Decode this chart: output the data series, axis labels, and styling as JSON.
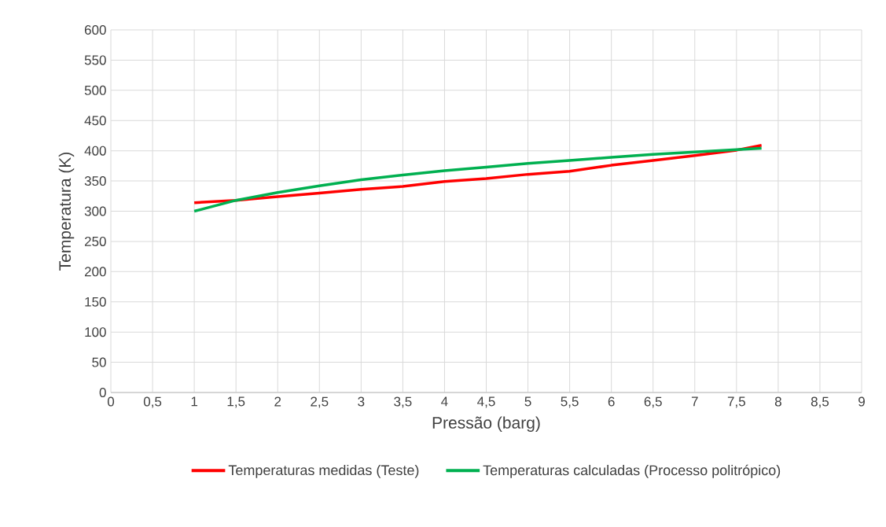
{
  "chart_data": {
    "type": "line",
    "xlabel": "Pressão (barg)",
    "ylabel": "Temperatura (K)",
    "xlim": [
      0,
      9
    ],
    "xticks": [
      0,
      {
        "value": 0.5,
        "label": "0,5"
      },
      1,
      {
        "value": 1.5,
        "label": "1,5"
      },
      2,
      {
        "value": 2.5,
        "label": "2,5"
      },
      3,
      {
        "value": 3.5,
        "label": "3,5"
      },
      4,
      {
        "value": 4.5,
        "label": "4,5"
      },
      5,
      {
        "value": 5.5,
        "label": "5,5"
      },
      6,
      {
        "value": 6.5,
        "label": "6,5"
      },
      7,
      {
        "value": 7.5,
        "label": "7,5"
      },
      8,
      {
        "value": 8.5,
        "label": "8,5"
      },
      9
    ],
    "ylim": [
      0,
      600
    ],
    "yticks": [
      0,
      50,
      100,
      150,
      200,
      250,
      300,
      350,
      400,
      450,
      500,
      550,
      600
    ],
    "grid": true,
    "legend": "bottom",
    "series": [
      {
        "name": "Temperaturas medidas (Teste)",
        "color": "#ff0000",
        "x": [
          1,
          1.5,
          2,
          2.5,
          3,
          3.5,
          4,
          4.5,
          5,
          5.5,
          6,
          6.5,
          7,
          7.5,
          7.8
        ],
        "values": [
          314,
          318,
          324,
          330,
          336,
          341,
          349,
          354,
          361,
          366,
          376,
          384,
          392,
          401,
          409
        ]
      },
      {
        "name": "Temperaturas calculadas (Processo politrópico)",
        "color": "#00b050",
        "x": [
          1,
          1.5,
          2,
          2.5,
          3,
          3.5,
          4,
          4.5,
          5,
          5.5,
          6,
          6.5,
          7,
          7.5,
          7.8
        ],
        "values": [
          300,
          318,
          331,
          342,
          352,
          360,
          367,
          373,
          379,
          384,
          389,
          394,
          398,
          402,
          404
        ]
      }
    ]
  }
}
